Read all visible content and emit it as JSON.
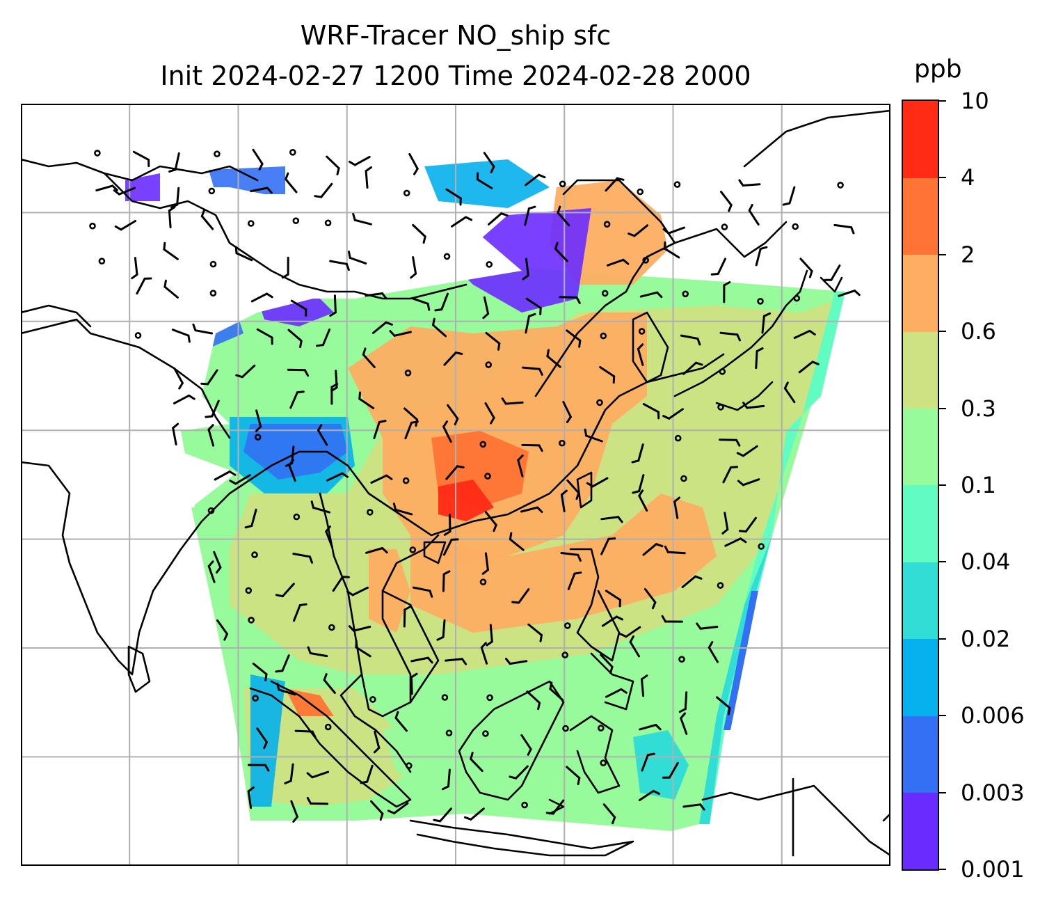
{
  "chart_data": {
    "type": "heatmap",
    "title": "WRF-Tracer NO_ship sfc",
    "subtitle": "Init 2024-02-27 1200 Time 2024-02-28 2000",
    "colorbar": {
      "unit": "ppb",
      "levels": [
        "0.001",
        "0.003",
        "0.006",
        "0.02",
        "0.04",
        "0.1",
        "0.3",
        "0.6",
        "2",
        "4",
        "10"
      ],
      "colors": [
        "#6a2bff",
        "#3370f3",
        "#06b0ec",
        "#32ddd5",
        "#60fcc2",
        "#97fa9b",
        "#cde282",
        "#fdae62",
        "#ff7435",
        "#ff2b15"
      ]
    },
    "grid": true,
    "grid_color": "#b0b0b0",
    "coastline_color": "#000000",
    "wind_barbs": true
  }
}
